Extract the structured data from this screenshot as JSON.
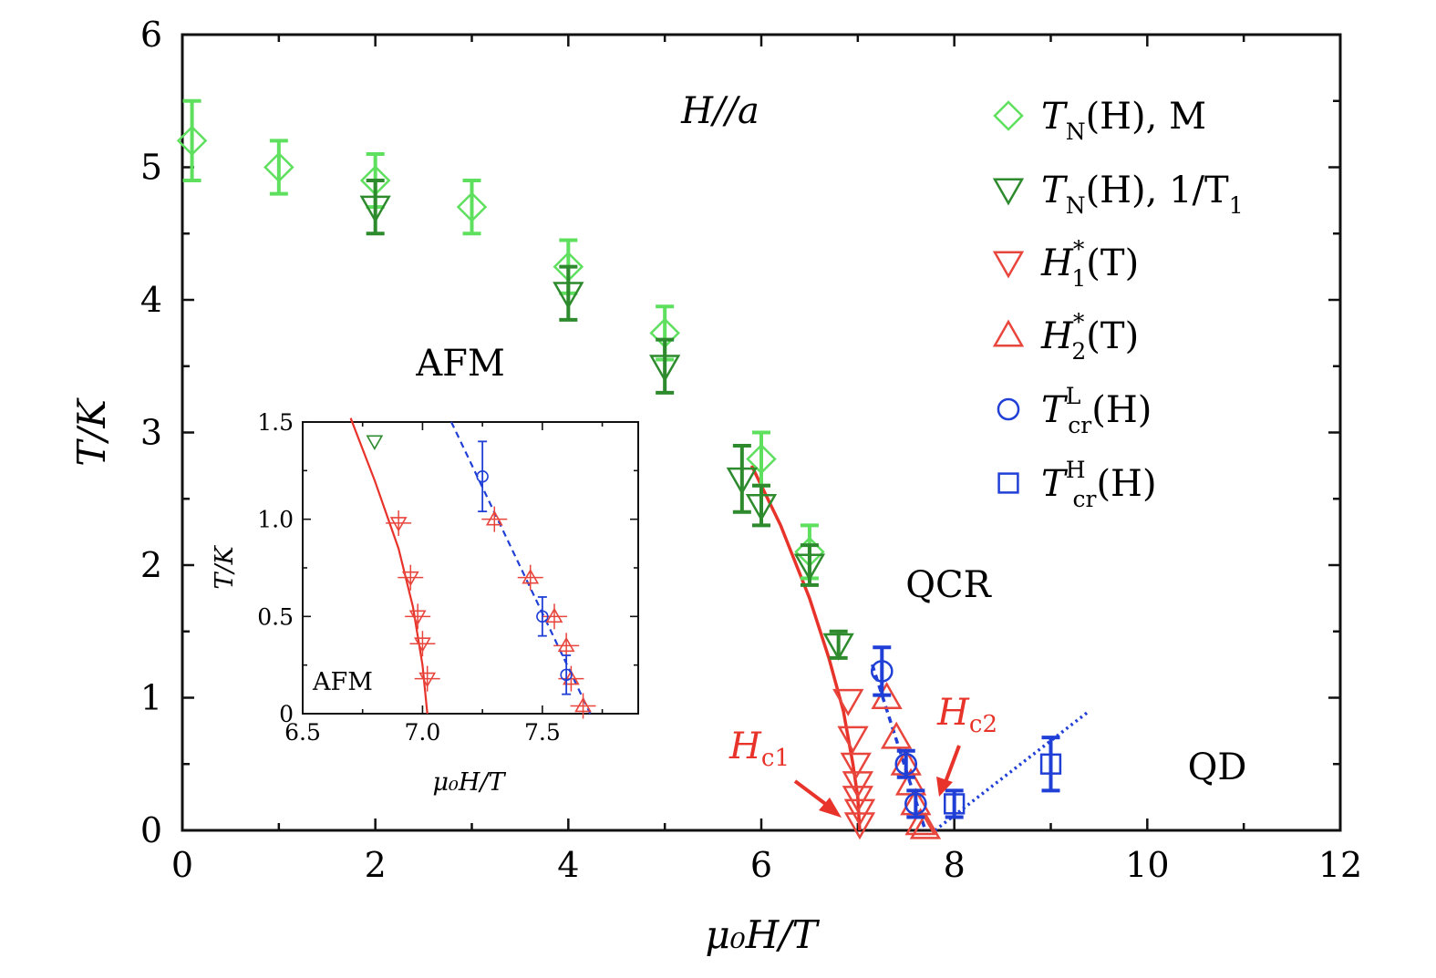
{
  "chart_data": [
    {
      "type": "scatter",
      "xlabel": "μ₀H/T",
      "ylabel": "T/K",
      "xlim": [
        0,
        12
      ],
      "ylim": [
        0,
        6
      ],
      "xticks": [
        "0",
        "2",
        "4",
        "6",
        "8",
        "10",
        "12"
      ],
      "yticks": [
        "0",
        "1",
        "2",
        "3",
        "4",
        "5",
        "6"
      ],
      "grid": false,
      "legend_position": "top-right",
      "annotations": {
        "field_dir": "H//a",
        "afm": "AFM",
        "qcr": "QCR",
        "qd": "QD",
        "hc1_base": "H",
        "hc1_sub": "c1",
        "hc2_base": "H",
        "hc2_sub": "c2"
      },
      "series": [
        {
          "name": "T_N(H), M",
          "legend": {
            "main": "T",
            "sub": "N",
            "rest": "(H), M"
          },
          "marker": "diamond",
          "color": "#5ee05e",
          "points": [
            {
              "x": 0.1,
              "y": 5.2,
              "err": 0.3
            },
            {
              "x": 1.0,
              "y": 5.0,
              "err": 0.2
            },
            {
              "x": 2.0,
              "y": 4.9,
              "err": 0.2
            },
            {
              "x": 3.0,
              "y": 4.7,
              "err": 0.2
            },
            {
              "x": 4.0,
              "y": 4.25,
              "err": 0.2
            },
            {
              "x": 5.0,
              "y": 3.75,
              "err": 0.2
            },
            {
              "x": 6.0,
              "y": 2.8,
              "err": 0.2
            },
            {
              "x": 6.5,
              "y": 2.1,
              "err": 0.2
            }
          ]
        },
        {
          "name": "T_N(H), 1/T_1",
          "legend": {
            "main": "T",
            "sub": "N",
            "rest": "(H), 1/T",
            "tail": "1"
          },
          "marker": "triangle-down",
          "color": "#2d8a2d",
          "points": [
            {
              "x": 2.0,
              "y": 4.7,
              "err": 0.2
            },
            {
              "x": 4.0,
              "y": 4.05,
              "err": 0.2
            },
            {
              "x": 5.0,
              "y": 3.5,
              "err": 0.2
            },
            {
              "x": 5.8,
              "y": 2.65,
              "err": 0.25
            },
            {
              "x": 6.0,
              "y": 2.45,
              "err": 0.15
            },
            {
              "x": 6.5,
              "y": 2.0,
              "err": 0.15
            },
            {
              "x": 6.8,
              "y": 1.4,
              "err": 0.1
            }
          ]
        },
        {
          "name": "H1*(T)",
          "legend": {
            "main": "H",
            "sup": "*",
            "sub": "1",
            "rest": "(T)"
          },
          "marker": "triangle-down",
          "color": "#e8453c",
          "points": [
            {
              "x": 6.9,
              "y": 0.98
            },
            {
              "x": 6.95,
              "y": 0.7
            },
            {
              "x": 6.98,
              "y": 0.5
            },
            {
              "x": 7.0,
              "y": 0.36
            },
            {
              "x": 7.0,
              "y": 0.25
            },
            {
              "x": 7.02,
              "y": 0.15
            },
            {
              "x": 7.02,
              "y": 0.05
            }
          ]
        },
        {
          "name": "H2*(T)",
          "legend": {
            "main": "H",
            "sup": "*",
            "sub": "2",
            "rest": "(T)"
          },
          "marker": "triangle-up",
          "color": "#e8453c",
          "points": [
            {
              "x": 7.3,
              "y": 1.0
            },
            {
              "x": 7.4,
              "y": 0.7
            },
            {
              "x": 7.5,
              "y": 0.5
            },
            {
              "x": 7.55,
              "y": 0.35
            },
            {
              "x": 7.6,
              "y": 0.2
            },
            {
              "x": 7.65,
              "y": 0.05
            },
            {
              "x": 7.7,
              "y": 0.02
            }
          ]
        },
        {
          "name": "T_cr^L(H)",
          "legend": {
            "main": "T",
            "sup": "L",
            "sub": "cr",
            "rest": "(H)"
          },
          "marker": "circle",
          "color": "#1f3fd6",
          "points": [
            {
              "x": 7.25,
              "y": 1.2,
              "err": 0.18
            },
            {
              "x": 7.5,
              "y": 0.5,
              "err": 0.1
            },
            {
              "x": 7.6,
              "y": 0.2,
              "err": 0.1
            }
          ]
        },
        {
          "name": "T_cr^H(H)",
          "legend": {
            "main": "T",
            "sup": "H",
            "sub": "cr",
            "rest": "(H)"
          },
          "marker": "square",
          "color": "#1f3fd6",
          "points": [
            {
              "x": 8.0,
              "y": 0.2,
              "err": 0.1
            },
            {
              "x": 9.0,
              "y": 0.5,
              "err": 0.2
            }
          ]
        }
      ],
      "lines": [
        {
          "name": "H1* fit",
          "style": "solid",
          "color": "#e8332a",
          "x": [
            5.9,
            6.2,
            6.5,
            6.7,
            6.85,
            6.95,
            7.0,
            7.02
          ],
          "y": [
            2.75,
            2.3,
            1.75,
            1.3,
            0.9,
            0.5,
            0.25,
            0.0
          ]
        },
        {
          "name": "T_cr^L fit",
          "style": "dashed",
          "color": "#1f3fd6",
          "x": [
            7.15,
            7.7
          ],
          "y": [
            1.25,
            0.0
          ]
        },
        {
          "name": "T_cr^H fit",
          "style": "dotted",
          "color": "#1f3fd6",
          "x": [
            7.8,
            9.4
          ],
          "y": [
            0.0,
            0.9
          ]
        }
      ]
    },
    {
      "type": "scatter",
      "inset": true,
      "xlabel": "μ₀H/T",
      "ylabel": "T/K",
      "xlim": [
        6.5,
        7.9
      ],
      "ylim": [
        0,
        1.5
      ],
      "xticks": [
        "6.5",
        "7.0",
        "7.5"
      ],
      "yticks": [
        "0",
        "0.5",
        "1.0",
        "1.5"
      ],
      "annotations": {
        "afm": "AFM"
      },
      "series": [
        {
          "name": "T_N(H), 1/T_1",
          "marker": "triangle-down",
          "color": "#2d8a2d",
          "points": [
            {
              "x": 6.8,
              "y": 1.4
            }
          ]
        },
        {
          "name": "H1*(T)",
          "marker": "triangle-down",
          "color": "#e8453c",
          "points": [
            {
              "x": 6.9,
              "y": 0.98
            },
            {
              "x": 6.95,
              "y": 0.7
            },
            {
              "x": 6.98,
              "y": 0.5
            },
            {
              "x": 7.0,
              "y": 0.36
            },
            {
              "x": 7.02,
              "y": 0.18
            }
          ]
        },
        {
          "name": "H2*(T)",
          "marker": "triangle-up",
          "color": "#e8453c",
          "points": [
            {
              "x": 7.3,
              "y": 1.0
            },
            {
              "x": 7.45,
              "y": 0.7
            },
            {
              "x": 7.55,
              "y": 0.5
            },
            {
              "x": 7.6,
              "y": 0.35
            },
            {
              "x": 7.62,
              "y": 0.18
            },
            {
              "x": 7.67,
              "y": 0.04
            }
          ]
        },
        {
          "name": "T_cr^L(H)",
          "marker": "circle",
          "color": "#1f3fd6",
          "points": [
            {
              "x": 7.25,
              "y": 1.22,
              "err": 0.18
            },
            {
              "x": 7.5,
              "y": 0.5,
              "err": 0.1
            },
            {
              "x": 7.6,
              "y": 0.2,
              "err": 0.1
            }
          ]
        }
      ],
      "lines": [
        {
          "name": "H1* fit",
          "style": "solid",
          "color": "#e8332a",
          "x": [
            6.7,
            6.8,
            6.9,
            6.96,
            7.0,
            7.02
          ],
          "y": [
            1.52,
            1.2,
            0.85,
            0.55,
            0.25,
            0.0
          ]
        },
        {
          "name": "T_cr^L fit",
          "style": "dashed",
          "color": "#1f3fd6",
          "x": [
            7.12,
            7.7
          ],
          "y": [
            1.5,
            0.0
          ]
        }
      ]
    }
  ]
}
